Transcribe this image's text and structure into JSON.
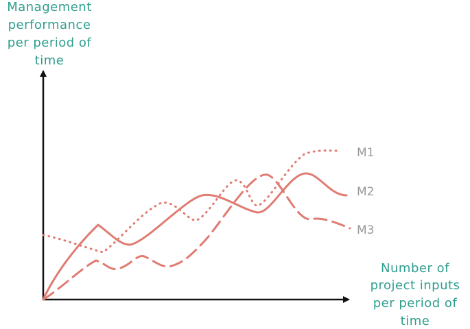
{
  "y_axis_label": [
    "Management",
    "performance",
    "per period of",
    "time"
  ],
  "x_axis_label": [
    "Number of",
    "project inputs",
    "per period of",
    "time"
  ],
  "curves": [
    {
      "label": "M1"
    },
    {
      "label": "M2"
    },
    {
      "label": "M3"
    }
  ]
}
